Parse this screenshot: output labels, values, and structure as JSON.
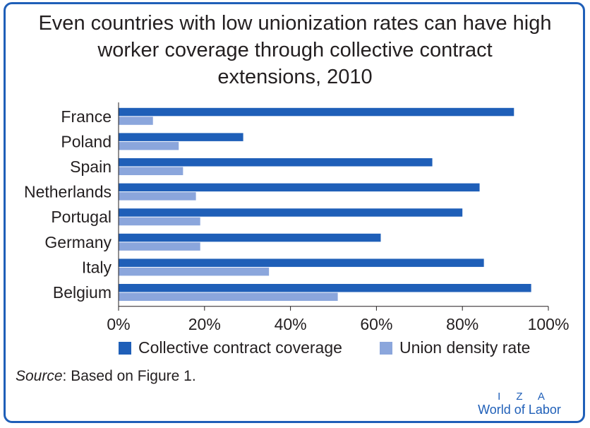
{
  "title_lines": [
    "Even countries with low unionization rates can have high",
    "worker coverage through collective contract",
    "extensions, 2010"
  ],
  "source_label": "Source",
  "source_text": ": Based on Figure 1.",
  "logo": {
    "top": "I Z A",
    "bottom": "World of Labor"
  },
  "colors": {
    "coverage": "#1f5fb8",
    "density": "#8ba6dc",
    "frame": "#1f5fb8"
  },
  "chart_data": {
    "type": "bar",
    "orientation": "horizontal",
    "categories": [
      "France",
      "Poland",
      "Spain",
      "Netherlands",
      "Portugal",
      "Germany",
      "Italy",
      "Belgium"
    ],
    "series": [
      {
        "name": "Collective contract coverage",
        "values": [
          92,
          29,
          73,
          84,
          80,
          61,
          85,
          96
        ]
      },
      {
        "name": "Union density rate",
        "values": [
          8,
          14,
          15,
          18,
          19,
          19,
          35,
          51
        ]
      }
    ],
    "xticks": [
      "0%",
      "20%",
      "40%",
      "60%",
      "80%",
      "100%"
    ],
    "xlim": [
      0,
      100
    ],
    "legend_position": "bottom",
    "grid": false
  }
}
